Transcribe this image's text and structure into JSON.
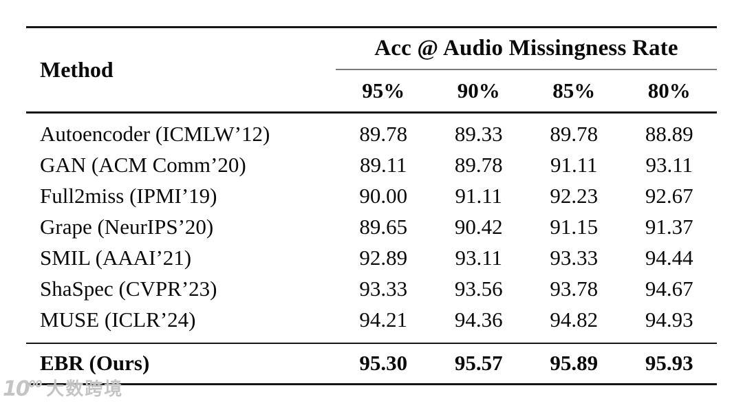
{
  "table": {
    "method_header": "Method",
    "group_header": "Acc @ Audio Missingness Rate",
    "sub_headers": [
      "95%",
      "90%",
      "85%",
      "80%"
    ],
    "rows": [
      {
        "method": "Autoencoder (ICMLW’12)",
        "values": [
          "89.78",
          "89.33",
          "89.78",
          "88.89"
        ]
      },
      {
        "method": "GAN (ACM Comm’20)",
        "values": [
          "89.11",
          "89.78",
          "91.11",
          "93.11"
        ]
      },
      {
        "method": "Full2miss (IPMI’19)",
        "values": [
          "90.00",
          "91.11",
          "92.23",
          "92.67"
        ]
      },
      {
        "method": "Grape (NeurIPS’20)",
        "values": [
          "89.65",
          "90.42",
          "91.15",
          "91.37"
        ]
      },
      {
        "method": "SMIL (AAAI’21)",
        "values": [
          "92.89",
          "93.11",
          "93.33",
          "94.44"
        ]
      },
      {
        "method": "ShaSpec (CVPR’23)",
        "values": [
          "93.33",
          "93.56",
          "93.78",
          "94.67"
        ]
      },
      {
        "method": "MUSE (ICLR’24)",
        "values": [
          "94.21",
          "94.36",
          "94.82",
          "94.93"
        ]
      }
    ],
    "ours_row": {
      "method": "EBR (Ours)",
      "values": [
        "95.30",
        "95.57",
        "95.89",
        "95.93"
      ]
    }
  },
  "watermark": {
    "logo_base": "10",
    "logo_sup": "00",
    "text": "大数跨境"
  },
  "colors": {
    "text": "#0a0a0a",
    "rule": "#141414",
    "cmidrule": "#7a7a7a",
    "watermark": "#bababa",
    "background": "#ffffff"
  }
}
